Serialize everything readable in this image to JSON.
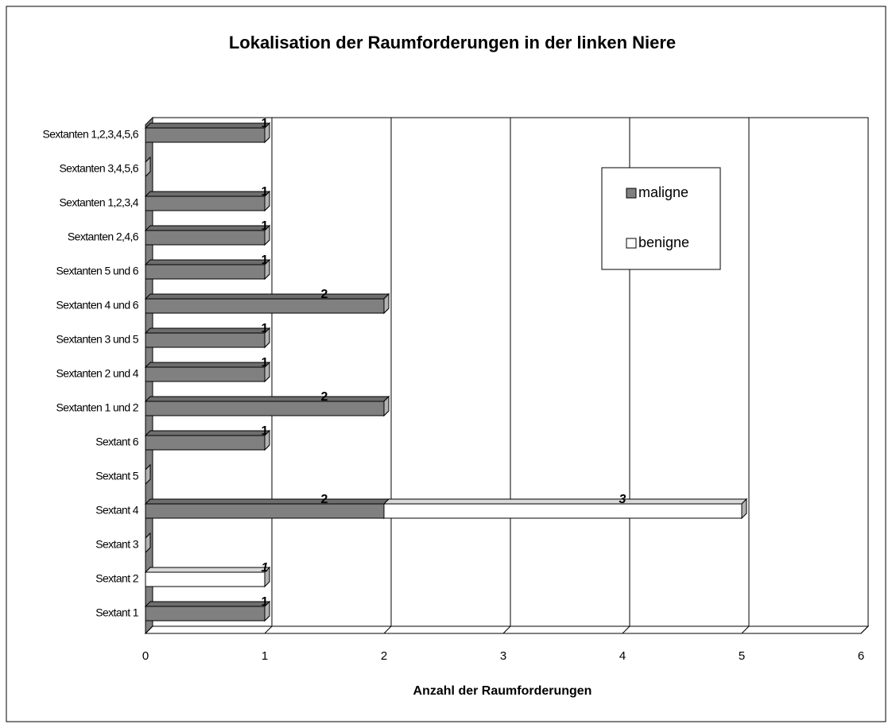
{
  "chart_data": {
    "type": "bar",
    "orientation": "horizontal",
    "stacked": true,
    "title": "Lokalisation der Raumforderungen in der linken Niere",
    "xlabel": "Anzahl der Raumforderungen",
    "categories": [
      "Sextant 1",
      "Sextant 2",
      "Sextant 3",
      "Sextant 4",
      "Sextant 5",
      "Sextant 6",
      "Sextanten 1 und 2",
      "Sextanten 2 und 4",
      "Sextanten 3 und 5",
      "Sextanten 4 und 6",
      "Sextanten 5 und 6",
      "Sextanten 2,4,6",
      "Sextanten 1,2,3,4",
      "Sextanten 3,4,5,6",
      "Sextanten 1,2,3,4,5,6"
    ],
    "series": [
      {
        "name": "maligne",
        "color": "#808080",
        "values": [
          1,
          0,
          0,
          2,
          0,
          1,
          2,
          1,
          1,
          2,
          1,
          1,
          1,
          0,
          1
        ]
      },
      {
        "name": "benigne",
        "color": "#ffffff",
        "values": [
          0,
          1,
          0,
          3,
          0,
          0,
          0,
          0,
          0,
          0,
          0,
          0,
          0,
          0,
          0
        ]
      }
    ],
    "xlim": [
      0,
      6
    ],
    "xticks": [
      0,
      1,
      2,
      3,
      4,
      5,
      6
    ],
    "grid": true,
    "legend": "upper right"
  }
}
